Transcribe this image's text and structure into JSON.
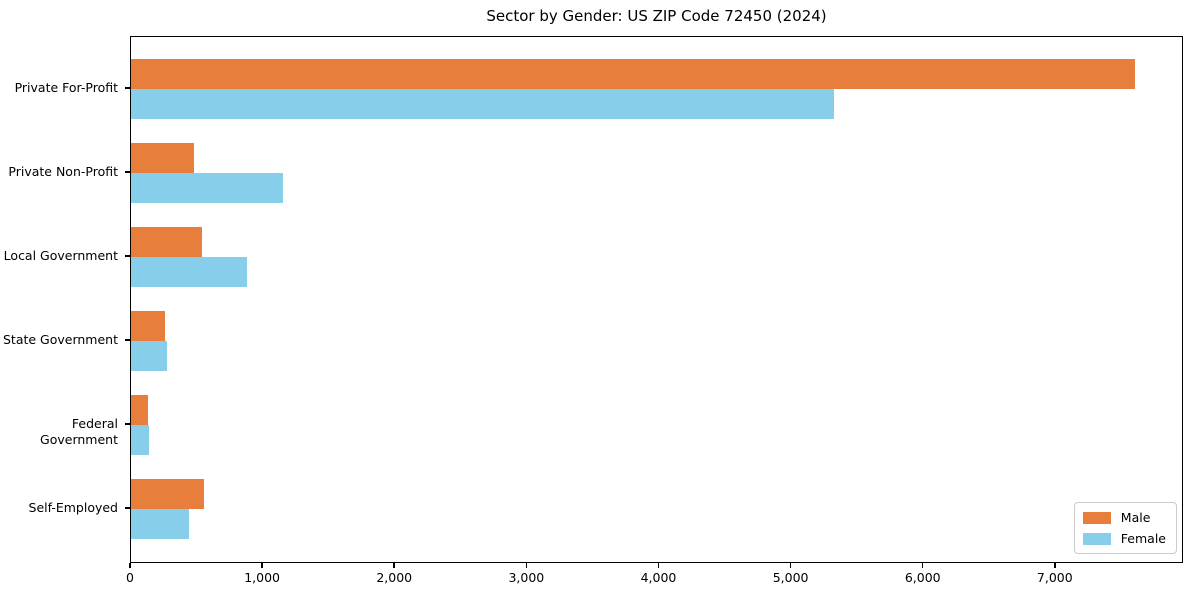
{
  "title": "Sector by Gender: US ZIP Code 72450 (2024)",
  "colors": {
    "male": "#e87e3c",
    "female": "#87ceeb",
    "spine": "#000000",
    "legend_border": "#cccccc",
    "background": "#ffffff"
  },
  "legend": {
    "position": "lower right",
    "entries": [
      {
        "label": "Male",
        "color": "#e87e3c"
      },
      {
        "label": "Female",
        "color": "#87ceeb"
      }
    ]
  },
  "chart_data": {
    "type": "bar",
    "orientation": "horizontal",
    "title": "Sector by Gender: US ZIP Code 72450 (2024)",
    "xlabel": "",
    "ylabel": "",
    "grid": false,
    "legend_position": "lower right",
    "categories": [
      "Private For-Profit",
      "Private Non-Profit",
      "Local Government",
      "State Government",
      "Federal Government",
      "Self-Employed"
    ],
    "series": [
      {
        "name": "Male",
        "color": "#e87e3c",
        "values": [
          7600,
          480,
          540,
          260,
          130,
          550
        ]
      },
      {
        "name": "Female",
        "color": "#87ceeb",
        "values": [
          5320,
          1150,
          880,
          270,
          140,
          440
        ]
      }
    ],
    "xlim": [
      0,
      7970
    ],
    "xticks": [
      0,
      1000,
      2000,
      3000,
      4000,
      5000,
      6000,
      7000
    ],
    "xtick_labels": [
      "0",
      "1,000",
      "2,000",
      "3,000",
      "4,000",
      "5,000",
      "6,000",
      "7,000"
    ]
  }
}
